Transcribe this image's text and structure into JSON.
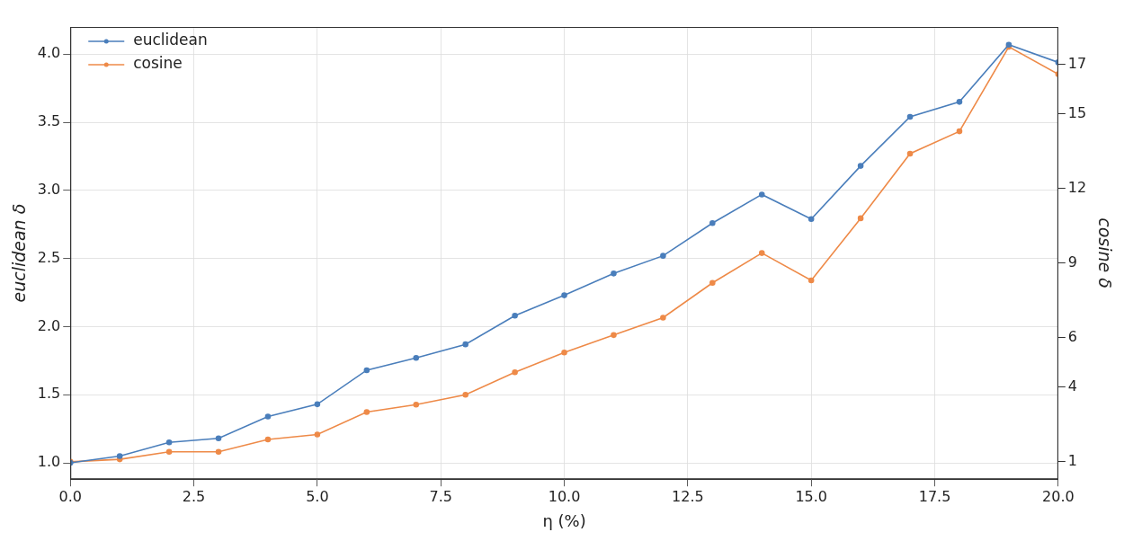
{
  "chart_data": {
    "type": "line",
    "x_label": "η (%)",
    "y_label": "euclidean δ",
    "y2_label": "cosine δ",
    "x": [
      0,
      1,
      2,
      3,
      4,
      5,
      6,
      7,
      8,
      9,
      10,
      11,
      12,
      13,
      14,
      15,
      16,
      17,
      18,
      19,
      20
    ],
    "series": [
      {
        "name": "euclidean",
        "color": "#4a7ebb",
        "marker": "o",
        "values": [
          1.0,
          1.05,
          1.15,
          1.18,
          1.34,
          1.43,
          1.68,
          1.77,
          1.87,
          2.08,
          2.23,
          2.39,
          2.52,
          2.76,
          2.97,
          2.79,
          3.18,
          3.54,
          3.65,
          4.07,
          3.94
        ]
      },
      {
        "name": "cosine",
        "color": "#ee8a48",
        "marker": "o",
        "axis": "y2",
        "values": [
          1.0,
          1.1,
          1.4,
          1.4,
          1.9,
          2.1,
          3.0,
          3.3,
          3.7,
          4.6,
          5.4,
          6.1,
          6.8,
          8.2,
          9.4,
          8.3,
          10.8,
          13.4,
          14.3,
          17.7,
          16.6
        ]
      }
    ],
    "xlim": [
      0,
      20
    ],
    "xticks": [
      {
        "value": 0,
        "label": "0.0"
      },
      {
        "value": 2.5,
        "label": "2.5"
      },
      {
        "value": 5,
        "label": "5.0"
      },
      {
        "value": 7.5,
        "label": "7.5"
      },
      {
        "value": 10,
        "label": "10.0"
      },
      {
        "value": 12.5,
        "label": "12.5"
      },
      {
        "value": 15,
        "label": "15.0"
      },
      {
        "value": 17.5,
        "label": "17.5"
      },
      {
        "value": 20,
        "label": "20.0"
      }
    ],
    "ylim": [
      0.88,
      4.2
    ],
    "yticks": [
      {
        "value": 1,
        "label": "1.0"
      },
      {
        "value": 1.5,
        "label": "1.5"
      },
      {
        "value": 2,
        "label": "2.0"
      },
      {
        "value": 2.5,
        "label": "2.5"
      },
      {
        "value": 3,
        "label": "3.0"
      },
      {
        "value": 3.5,
        "label": "3.5"
      },
      {
        "value": 4,
        "label": "4.0"
      }
    ],
    "y2lim": [
      0.3,
      18.5
    ],
    "y2ticks": [
      1,
      4,
      6,
      9,
      12,
      15,
      17
    ],
    "grid": true,
    "legend": "upper left"
  }
}
